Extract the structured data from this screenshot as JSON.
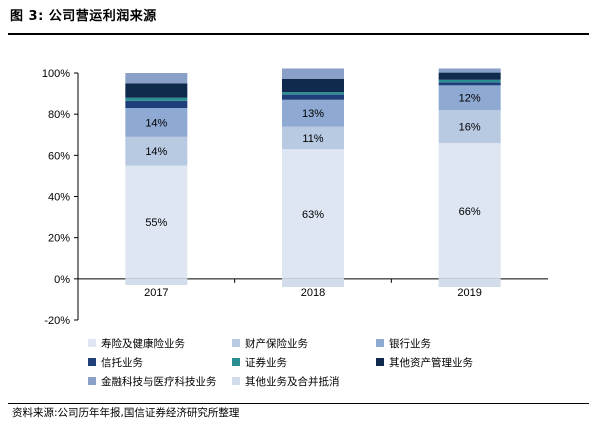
{
  "figure": {
    "title": "图 3: 公司营运利润来源",
    "source": "资料来源:公司历年年报,国信证券经济研究所整理"
  },
  "chart_data": {
    "type": "bar",
    "stacked": true,
    "categories": [
      "2017",
      "2018",
      "2019"
    ],
    "ylim": [
      -20,
      100
    ],
    "yticks": [
      "100%",
      "80%",
      "60%",
      "40%",
      "20%",
      "0%",
      "-20%"
    ],
    "ytick_values": [
      100,
      80,
      60,
      40,
      20,
      0,
      -20
    ],
    "grid": false,
    "legend_position": "bottom",
    "series": [
      {
        "name": "寿险及健康险业务",
        "color": "#dde6f2",
        "values": [
          55,
          63,
          66
        ],
        "labels": [
          "55%",
          "63%",
          "66%"
        ]
      },
      {
        "name": "财产保险业务",
        "color": "#b8c9e2",
        "values": [
          14,
          11,
          16
        ],
        "labels": [
          "14%",
          "11%",
          "16%"
        ]
      },
      {
        "name": "银行业务",
        "color": "#8ea9d2",
        "values": [
          14,
          13,
          12
        ],
        "labels": [
          "14%",
          "13%",
          "12%"
        ]
      },
      {
        "name": "信托业务",
        "color": "#1f3f7a",
        "values": [
          3.5,
          2.5,
          1.5
        ],
        "labels": [
          "",
          "",
          ""
        ]
      },
      {
        "name": "证券业务",
        "color": "#2b8e93",
        "values": [
          1.5,
          1.2,
          1.2
        ],
        "labels": [
          "",
          "",
          ""
        ]
      },
      {
        "name": "其他资产管理业务",
        "color": "#0f2a4d",
        "values": [
          7,
          6.5,
          3.5
        ],
        "labels": [
          "",
          "",
          ""
        ]
      },
      {
        "name": "金融科技与医疗科技业务",
        "color": "#8aa0c8",
        "values": [
          5,
          5,
          2
        ],
        "labels": [
          "",
          "",
          ""
        ]
      },
      {
        "name": "其他业务及合并抵消",
        "color": "#d2dcea",
        "values": [
          -3,
          -4,
          -4
        ],
        "labels": [
          "",
          "",
          ""
        ]
      }
    ]
  }
}
